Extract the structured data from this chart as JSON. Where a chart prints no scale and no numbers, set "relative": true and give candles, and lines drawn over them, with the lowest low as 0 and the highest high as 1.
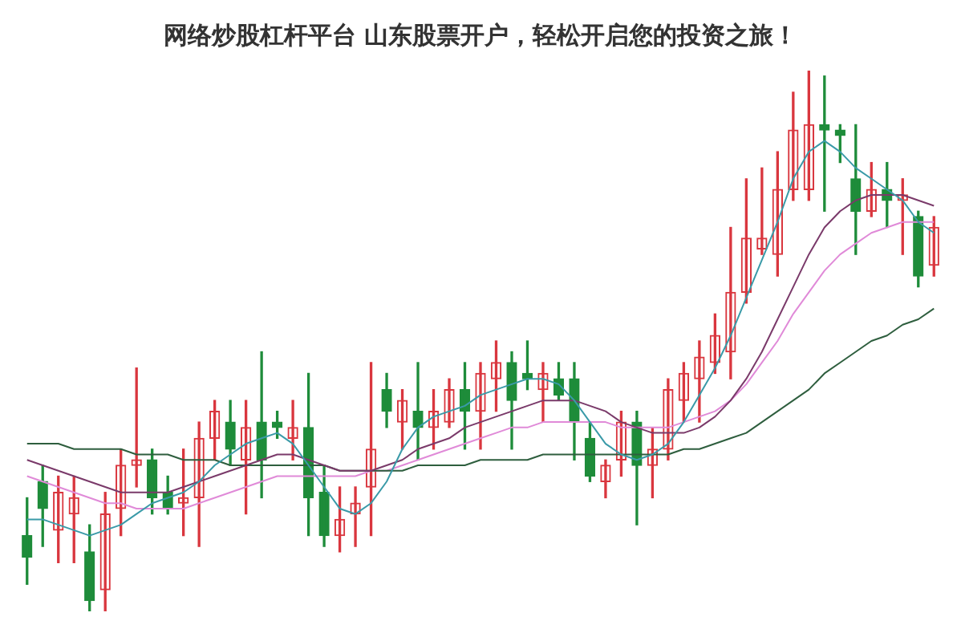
{
  "chart_data": {
    "type": "candlestick",
    "title": "网络炒股杠杆平台 山东股票开户，轻松开启您的投资之旅！",
    "relative": true,
    "categories": [
      null,
      null,
      null,
      null,
      null,
      null,
      null,
      null,
      null,
      null,
      null,
      null,
      null,
      null,
      null,
      null,
      null,
      null,
      null,
      null,
      null,
      null,
      null,
      null,
      null,
      null,
      null,
      null,
      null,
      null,
      null,
      null,
      null,
      null,
      null,
      null,
      null,
      null,
      null,
      null,
      null,
      null,
      null,
      null,
      null,
      null,
      null,
      null,
      null,
      null,
      null,
      null,
      null,
      null,
      null,
      null,
      null,
      null,
      null
    ],
    "ohlc": [
      [
        0.14,
        0.21,
        0.05,
        0.1
      ],
      [
        0.24,
        0.27,
        0.12,
        0.19
      ],
      [
        0.15,
        0.25,
        0.09,
        0.22
      ],
      [
        0.18,
        0.25,
        0.09,
        0.21
      ],
      [
        0.11,
        0.16,
        0,
        0.02
      ],
      [
        0.04,
        0.22,
        0,
        0.18
      ],
      [
        0.19,
        0.3,
        0.14,
        0.27
      ],
      [
        0.27,
        0.45,
        0.23,
        0.28
      ],
      [
        0.28,
        0.3,
        0.18,
        0.21
      ],
      [
        0.22,
        0.25,
        0.18,
        0.19
      ],
      [
        0.2,
        0.3,
        0.14,
        0.21
      ],
      [
        0.21,
        0.35,
        0.12,
        0.32
      ],
      [
        0.32,
        0.39,
        0.28,
        0.37
      ],
      [
        0.35,
        0.39,
        0.27,
        0.3
      ],
      [
        0.28,
        0.39,
        0.18,
        0.34
      ],
      [
        0.35,
        0.48,
        0.21,
        0.28
      ],
      [
        0.35,
        0.37,
        0.32,
        0.34
      ],
      [
        0.32,
        0.39,
        0.28,
        0.34
      ],
      [
        0.34,
        0.44,
        0.14,
        0.21
      ],
      [
        0.22,
        0.27,
        0.12,
        0.14
      ],
      [
        0.14,
        0.23,
        0.11,
        0.17
      ],
      [
        0.18,
        0.23,
        0.12,
        0.2
      ],
      [
        0.23,
        0.46,
        0.14,
        0.3
      ],
      [
        0.41,
        0.44,
        0.34,
        0.37
      ],
      [
        0.35,
        0.41,
        0.3,
        0.39
      ],
      [
        0.37,
        0.46,
        0.28,
        0.34
      ],
      [
        0.34,
        0.41,
        0.3,
        0.37
      ],
      [
        0.35,
        0.43,
        0.34,
        0.41
      ],
      [
        0.41,
        0.46,
        0.3,
        0.37
      ],
      [
        0.37,
        0.46,
        0.3,
        0.44
      ],
      [
        0.43,
        0.5,
        0.37,
        0.46
      ],
      [
        0.46,
        0.48,
        0.3,
        0.39
      ],
      [
        0.44,
        0.5,
        0.41,
        0.43
      ],
      [
        0.41,
        0.46,
        0.35,
        0.44
      ],
      [
        0.43,
        0.46,
        0.39,
        0.4
      ],
      [
        0.43,
        0.46,
        0.28,
        0.35
      ],
      [
        0.32,
        0.35,
        0.24,
        0.25
      ],
      [
        0.24,
        0.28,
        0.21,
        0.27
      ],
      [
        0.28,
        0.37,
        0.25,
        0.35
      ],
      [
        0.35,
        0.37,
        0.16,
        0.27
      ],
      [
        0.27,
        0.34,
        0.21,
        0.3
      ],
      [
        0.3,
        0.43,
        0.28,
        0.41
      ],
      [
        0.39,
        0.46,
        0.35,
        0.44
      ],
      [
        0.43,
        0.5,
        0.35,
        0.47
      ],
      [
        0.46,
        0.55,
        0.44,
        0.51
      ],
      [
        0.48,
        0.71,
        0.43,
        0.59
      ],
      [
        0.59,
        0.8,
        0.57,
        0.69
      ],
      [
        0.67,
        0.82,
        0.66,
        0.69
      ],
      [
        0.66,
        0.85,
        0.62,
        0.78
      ],
      [
        0.78,
        0.96,
        0.76,
        0.89
      ],
      [
        0.78,
        1,
        0.76,
        0.9
      ],
      [
        0.9,
        0.99,
        0.74,
        0.89
      ],
      [
        0.89,
        0.9,
        0.83,
        0.88
      ],
      [
        0.8,
        0.9,
        0.66,
        0.74
      ],
      [
        0.74,
        0.83,
        0.73,
        0.78
      ],
      [
        0.78,
        0.83,
        0.71,
        0.76
      ],
      [
        0.76,
        0.8,
        0.66,
        0.77
      ],
      [
        0.73,
        0.74,
        0.6,
        0.62
      ],
      [
        0.64,
        0.73,
        0.62,
        0.71
      ]
    ],
    "colors": [
      "#1e8c3a",
      "#1e8c3a",
      "#d9363e",
      "#d9363e",
      "#1e8c3a",
      "#d9363e",
      "#d9363e",
      "#d9363e",
      "#1e8c3a",
      "#1e8c3a",
      "#d9363e",
      "#d9363e",
      "#d9363e",
      "#1e8c3a",
      "#d9363e",
      "#1e8c3a",
      "#1e8c3a",
      "#d9363e",
      "#1e8c3a",
      "#1e8c3a",
      "#d9363e",
      "#d9363e",
      "#d9363e",
      "#1e8c3a",
      "#d9363e",
      "#1e8c3a",
      "#d9363e",
      "#d9363e",
      "#1e8c3a",
      "#d9363e",
      "#d9363e",
      "#1e8c3a",
      "#1e8c3a",
      "#d9363e",
      "#1e8c3a",
      "#1e8c3a",
      "#1e8c3a",
      "#d9363e",
      "#d9363e",
      "#1e8c3a",
      "#d9363e",
      "#d9363e",
      "#d9363e",
      "#d9363e",
      "#d9363e",
      "#d9363e",
      "#d9363e",
      "#d9363e",
      "#d9363e",
      "#d9363e",
      "#d9363e",
      "#1e8c3a",
      "#1e8c3a",
      "#1e8c3a",
      "#d9363e",
      "#1e8c3a",
      "#d9363e",
      "#1e8c3a",
      "#d9363e"
    ],
    "series": [
      {
        "type": "line",
        "color": "#3a9aa8",
        "values": [
          0.17,
          0.17,
          0.16,
          0.15,
          0.14,
          0.15,
          0.16,
          0.18,
          0.2,
          0.21,
          0.22,
          0.24,
          0.27,
          0.29,
          0.31,
          0.32,
          0.33,
          0.31,
          0.27,
          0.23,
          0.19,
          0.18,
          0.2,
          0.24,
          0.3,
          0.34,
          0.36,
          0.37,
          0.38,
          0.4,
          0.41,
          0.42,
          0.43,
          0.43,
          0.42,
          0.39,
          0.35,
          0.31,
          0.29,
          0.28,
          0.29,
          0.31,
          0.35,
          0.4,
          0.45,
          0.51,
          0.58,
          0.65,
          0.72,
          0.8,
          0.85,
          0.87,
          0.85,
          0.82,
          0.8,
          0.78,
          0.76,
          0.72,
          0.7
        ]
      },
      {
        "type": "line",
        "color": "#7a3a6a",
        "values": [
          0.28,
          0.27,
          0.26,
          0.25,
          0.24,
          0.23,
          0.22,
          0.22,
          0.22,
          0.22,
          0.23,
          0.24,
          0.25,
          0.26,
          0.27,
          0.28,
          0.29,
          0.29,
          0.28,
          0.27,
          0.26,
          0.26,
          0.26,
          0.27,
          0.28,
          0.3,
          0.31,
          0.32,
          0.34,
          0.35,
          0.36,
          0.37,
          0.38,
          0.39,
          0.39,
          0.39,
          0.38,
          0.37,
          0.35,
          0.34,
          0.33,
          0.33,
          0.33,
          0.34,
          0.36,
          0.39,
          0.43,
          0.48,
          0.54,
          0.6,
          0.66,
          0.71,
          0.74,
          0.76,
          0.77,
          0.77,
          0.77,
          0.76,
          0.75
        ]
      },
      {
        "type": "line",
        "color": "#2e5e3e",
        "values": [
          0.31,
          0.31,
          0.31,
          0.3,
          0.3,
          0.3,
          0.3,
          0.29,
          0.29,
          0.29,
          0.28,
          0.28,
          0.28,
          0.27,
          0.27,
          0.27,
          0.27,
          0.27,
          0.27,
          0.27,
          0.26,
          0.26,
          0.26,
          0.26,
          0.26,
          0.27,
          0.27,
          0.27,
          0.27,
          0.28,
          0.28,
          0.28,
          0.28,
          0.29,
          0.29,
          0.29,
          0.29,
          0.29,
          0.29,
          0.29,
          0.29,
          0.29,
          0.3,
          0.3,
          0.31,
          0.32,
          0.33,
          0.35,
          0.37,
          0.39,
          0.41,
          0.44,
          0.46,
          0.48,
          0.5,
          0.51,
          0.53,
          0.54,
          0.56
        ]
      },
      {
        "type": "line",
        "color": "#e08ad8",
        "values": [
          0.25,
          0.24,
          0.23,
          0.22,
          0.21,
          0.2,
          0.2,
          0.19,
          0.19,
          0.19,
          0.19,
          0.2,
          0.21,
          0.22,
          0.23,
          0.24,
          0.25,
          0.25,
          0.25,
          0.25,
          0.25,
          0.25,
          0.26,
          0.26,
          0.27,
          0.28,
          0.29,
          0.3,
          0.31,
          0.32,
          0.33,
          0.34,
          0.34,
          0.35,
          0.35,
          0.35,
          0.35,
          0.35,
          0.34,
          0.34,
          0.34,
          0.34,
          0.35,
          0.36,
          0.37,
          0.39,
          0.42,
          0.46,
          0.5,
          0.55,
          0.59,
          0.63,
          0.66,
          0.68,
          0.7,
          0.71,
          0.72,
          0.72,
          0.72
        ]
      }
    ]
  }
}
